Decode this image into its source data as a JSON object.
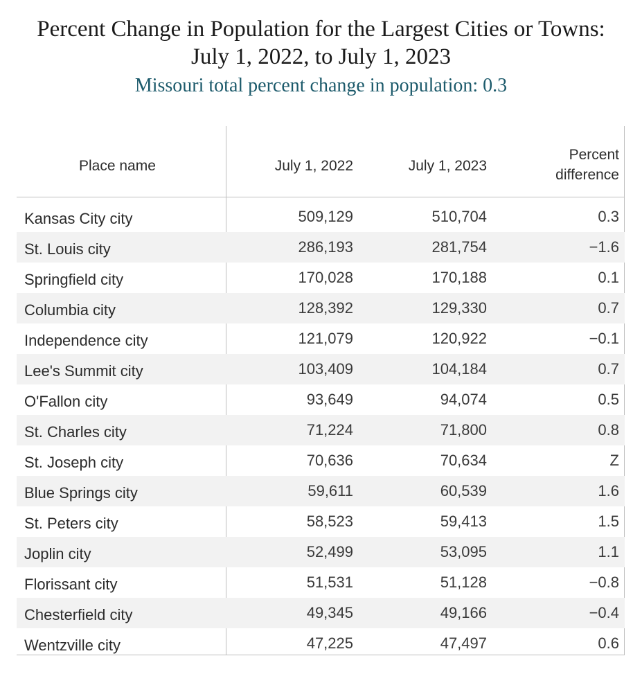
{
  "title": {
    "line1": "Percent Change in Population for the Largest Cities or Towns:",
    "line2": "July 1, 2022, to July 1, 2023",
    "subtitle": "Missouri total percent change in population: 0.3"
  },
  "chart_data": {
    "type": "table",
    "columns": [
      "Place name",
      "July 1, 2022",
      "July 1, 2023",
      "Percent difference"
    ],
    "rows": [
      {
        "place": "Kansas City city",
        "y2022": "509,129",
        "y2023": "510,704",
        "pct": "0.3"
      },
      {
        "place": "St. Louis city",
        "y2022": "286,193",
        "y2023": "281,754",
        "pct": "−1.6"
      },
      {
        "place": "Springfield city",
        "y2022": "170,028",
        "y2023": "170,188",
        "pct": "0.1"
      },
      {
        "place": "Columbia city",
        "y2022": "128,392",
        "y2023": "129,330",
        "pct": "0.7"
      },
      {
        "place": "Independence city",
        "y2022": "121,079",
        "y2023": "120,922",
        "pct": "−0.1"
      },
      {
        "place": "Lee's Summit city",
        "y2022": "103,409",
        "y2023": "104,184",
        "pct": "0.7"
      },
      {
        "place": "O'Fallon city",
        "y2022": "93,649",
        "y2023": "94,074",
        "pct": "0.5"
      },
      {
        "place": "St. Charles city",
        "y2022": "71,224",
        "y2023": "71,800",
        "pct": "0.8"
      },
      {
        "place": "St. Joseph city",
        "y2022": "70,636",
        "y2023": "70,634",
        "pct": "Z"
      },
      {
        "place": "Blue Springs city",
        "y2022": "59,611",
        "y2023": "60,539",
        "pct": "1.6"
      },
      {
        "place": "St. Peters city",
        "y2022": "58,523",
        "y2023": "59,413",
        "pct": "1.5"
      },
      {
        "place": "Joplin city",
        "y2022": "52,499",
        "y2023": "53,095",
        "pct": "1.1"
      },
      {
        "place": "Florissant city",
        "y2022": "51,531",
        "y2023": "51,128",
        "pct": "−0.8"
      },
      {
        "place": "Chesterfield city",
        "y2022": "49,345",
        "y2023": "49,166",
        "pct": "−0.4"
      },
      {
        "place": "Wentzville city",
        "y2022": "47,225",
        "y2023": "47,497",
        "pct": "0.6"
      }
    ]
  },
  "headers": {
    "place": "Place name",
    "y2022": "July 1, 2022",
    "y2023": "July 1, 2023",
    "pct_line1": "Percent",
    "pct_line2": "difference"
  },
  "colors": {
    "subtitle": "#1c5a6b",
    "row_shade": "#f2f2f2",
    "grid": "#bdbdbd"
  }
}
